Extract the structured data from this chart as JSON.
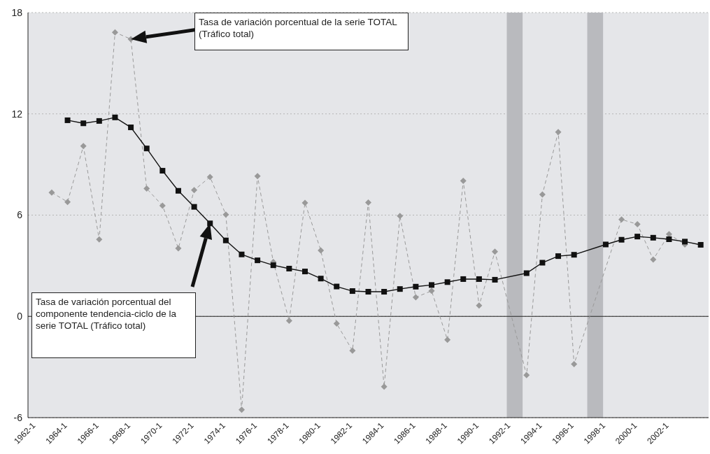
{
  "chart_data": {
    "type": "line",
    "x": [
      "1963",
      "1964",
      "1965",
      "1966",
      "1967",
      "1968",
      "1969",
      "1970",
      "1971",
      "1972",
      "1973",
      "1974",
      "1975",
      "1976",
      "1977",
      "1978",
      "1979",
      "1980",
      "1981",
      "1982",
      "1983",
      "1984",
      "1985",
      "1986",
      "1987",
      "1988",
      "1989",
      "1990",
      "1991",
      "1992",
      "1993",
      "1994",
      "1995",
      "1996",
      "1997",
      "1998",
      "1999",
      "2000",
      "2001",
      "2002",
      "2003",
      "2004"
    ],
    "xlim": [
      "1961-07",
      "2004-07"
    ],
    "xticks": [
      {
        "value": "1962",
        "label": "1962-1"
      },
      {
        "value": "1964",
        "label": "1964-1"
      },
      {
        "value": "1966",
        "label": "1966-1"
      },
      {
        "value": "1968",
        "label": "1968-1"
      },
      {
        "value": "1970",
        "label": "1970-1"
      },
      {
        "value": "1972",
        "label": "1972-1"
      },
      {
        "value": "1974",
        "label": "1974-1"
      },
      {
        "value": "1976",
        "label": "1976-1"
      },
      {
        "value": "1978",
        "label": "1978-1"
      },
      {
        "value": "1980",
        "label": "1980-1"
      },
      {
        "value": "1982",
        "label": "1982-1"
      },
      {
        "value": "1984",
        "label": "1984-1"
      },
      {
        "value": "1986",
        "label": "1986-1"
      },
      {
        "value": "1988",
        "label": "1988-1"
      },
      {
        "value": "1990",
        "label": "1990-1"
      },
      {
        "value": "1992",
        "label": "1992-1"
      },
      {
        "value": "1994",
        "label": "1994-1"
      },
      {
        "value": "1996",
        "label": "1996-1"
      },
      {
        "value": "1998",
        "label": "1998-1"
      },
      {
        "value": "2000",
        "label": "2000-1"
      },
      {
        "value": "2002",
        "label": "2002-1"
      }
    ],
    "series": [
      {
        "color": "#999999",
        "marker": "diamond",
        "line_style": "dashed",
        "values": [
          7.34,
          6.78,
          10.09,
          4.56,
          16.83,
          16.43,
          7.57,
          6.56,
          4.03,
          7.48,
          8.26,
          6.03,
          -5.53,
          8.31,
          3.22,
          -0.26,
          6.73,
          3.91,
          -0.43,
          -2.03,
          6.75,
          -4.17,
          5.95,
          1.13,
          1.51,
          -1.39,
          8.03,
          0.64,
          3.83,
          null,
          -3.48,
          7.22,
          10.92,
          -2.83,
          null,
          null,
          5.74,
          5.46,
          3.37,
          4.87,
          4.26,
          null
        ]
      },
      {
        "color": "#111111",
        "marker": "square",
        "line_style": "solid",
        "values": [
          null,
          11.62,
          11.44,
          11.58,
          11.79,
          11.2,
          9.95,
          8.63,
          7.44,
          6.49,
          5.51,
          4.5,
          3.67,
          3.32,
          3.03,
          2.83,
          2.66,
          2.24,
          1.77,
          1.5,
          1.46,
          1.46,
          1.62,
          1.76,
          1.86,
          2.03,
          2.21,
          2.21,
          2.17,
          null,
          2.56,
          3.18,
          3.57,
          3.65,
          null,
          4.26,
          4.54,
          4.73,
          4.66,
          4.57,
          4.43,
          4.24
        ]
      }
    ],
    "ylim": [
      -6,
      18
    ],
    "yticks": [
      -6,
      0,
      6,
      12,
      18
    ],
    "grid": "y",
    "bands": [
      {
        "axis": "x",
        "from": "1991-10",
        "to": "1992-10",
        "color": "#b9babe"
      },
      {
        "axis": "x",
        "from": "1996-11",
        "to": "1997-11",
        "color": "#b9babe"
      }
    ],
    "ref_lines": [
      {
        "axis": "y",
        "value": 0,
        "color": "#222222"
      }
    ],
    "annotations": [
      "Tasa de variación porcentual de la serie TOTAL (Tráfico total)",
      "Tasa de variación porcentual del componente tendencia-ciclo de la serie TOTAL (Tráfico total)"
    ]
  }
}
